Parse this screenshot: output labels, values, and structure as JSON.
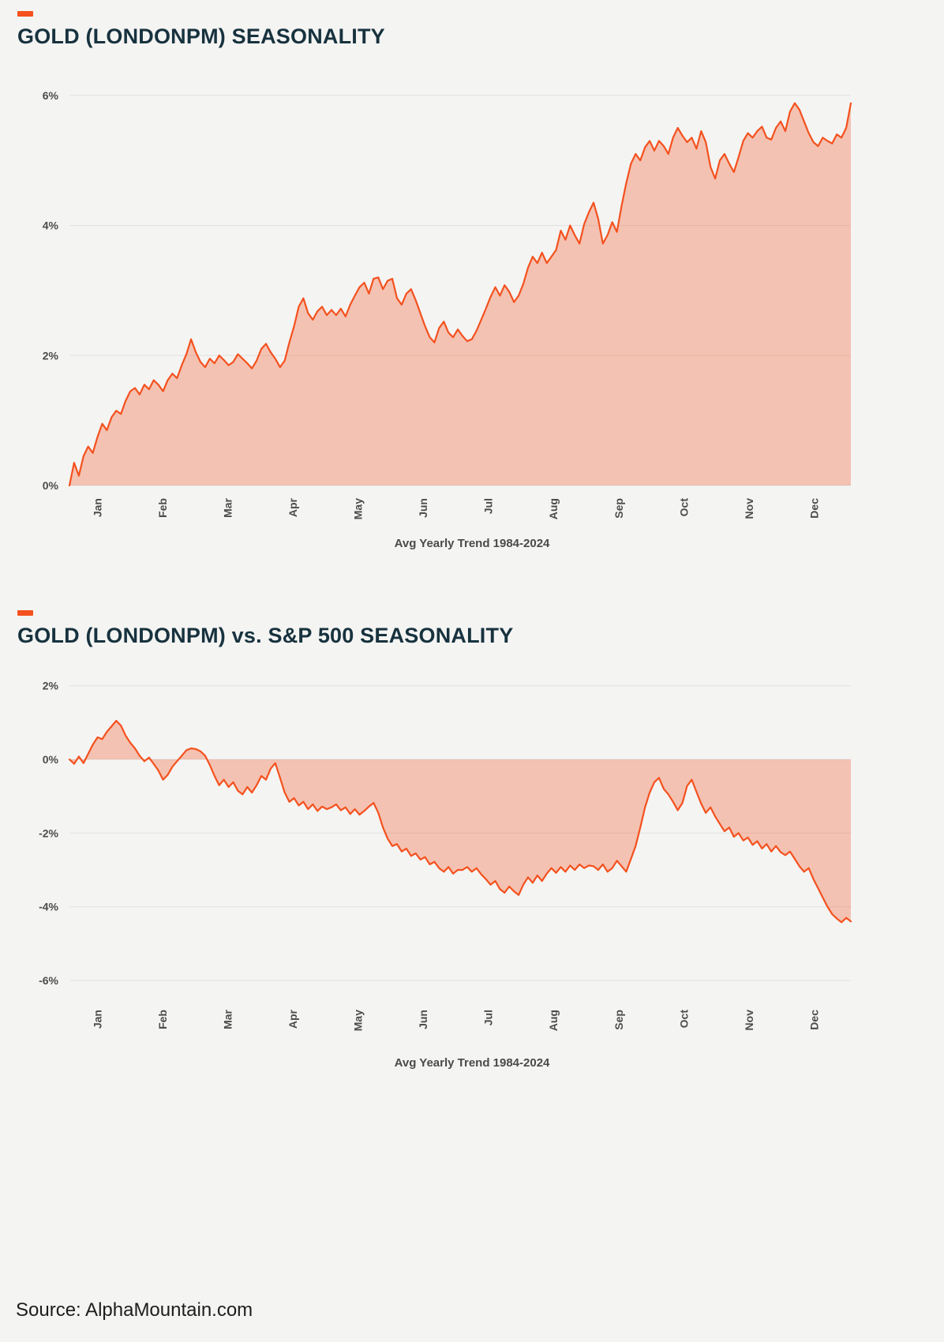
{
  "colors": {
    "accent": "#f4511e",
    "line": "#f4511e",
    "fill": "rgba(244,81,30,0.30)",
    "grid": "#e1e1e0",
    "title": "#17323e",
    "tick_text": "#4c4c4c"
  },
  "footer": {
    "source": "Source: AlphaMountain.com"
  },
  "chart_data": [
    {
      "type": "area",
      "title": "GOLD (LONDONPM) SEASONALITY",
      "xlabel": "Avg Yearly Trend 1984-2024",
      "ylabel": "",
      "legend": "none",
      "grid": "horizontal",
      "categories": [
        "Jan",
        "Feb",
        "Mar",
        "Apr",
        "May",
        "Jun",
        "Jul",
        "Aug",
        "Sep",
        "Oct",
        "Nov",
        "Dec"
      ],
      "yticks": [
        0,
        2,
        4,
        6
      ],
      "ylim": [
        0,
        6.35
      ],
      "baseline": 0,
      "values": [
        0,
        0.35,
        0.15,
        0.45,
        0.6,
        0.5,
        0.75,
        0.95,
        0.85,
        1.05,
        1.15,
        1.1,
        1.3,
        1.45,
        1.5,
        1.4,
        1.55,
        1.48,
        1.62,
        1.55,
        1.45,
        1.62,
        1.72,
        1.65,
        1.85,
        2.02,
        2.25,
        2.05,
        1.9,
        1.82,
        1.95,
        1.88,
        2.0,
        1.93,
        1.85,
        1.9,
        2.02,
        1.95,
        1.88,
        1.8,
        1.92,
        2.1,
        2.18,
        2.05,
        1.95,
        1.82,
        1.92,
        2.2,
        2.45,
        2.75,
        2.88,
        2.65,
        2.55,
        2.68,
        2.75,
        2.62,
        2.7,
        2.62,
        2.72,
        2.6,
        2.78,
        2.92,
        3.05,
        3.12,
        2.95,
        3.18,
        3.2,
        3.02,
        3.15,
        3.18,
        2.88,
        2.78,
        2.95,
        3.02,
        2.85,
        2.65,
        2.45,
        2.28,
        2.2,
        2.42,
        2.52,
        2.35,
        2.28,
        2.4,
        2.3,
        2.22,
        2.25,
        2.38,
        2.55,
        2.72,
        2.9,
        3.05,
        2.92,
        3.08,
        2.98,
        2.82,
        2.92,
        3.1,
        3.35,
        3.52,
        3.42,
        3.58,
        3.42,
        3.52,
        3.62,
        3.92,
        3.78,
        4.0,
        3.85,
        3.72,
        4.02,
        4.2,
        4.35,
        4.1,
        3.72,
        3.85,
        4.05,
        3.9,
        4.3,
        4.65,
        4.95,
        5.1,
        5.0,
        5.2,
        5.3,
        5.15,
        5.3,
        5.22,
        5.1,
        5.35,
        5.5,
        5.38,
        5.28,
        5.35,
        5.18,
        5.45,
        5.28,
        4.9,
        4.72,
        5.0,
        5.1,
        4.95,
        4.82,
        5.05,
        5.3,
        5.42,
        5.35,
        5.45,
        5.52,
        5.35,
        5.32,
        5.5,
        5.6,
        5.45,
        5.75,
        5.88,
        5.78,
        5.6,
        5.42,
        5.28,
        5.22,
        5.35,
        5.3,
        5.26,
        5.4,
        5.35,
        5.5,
        5.88
      ]
    },
    {
      "type": "area",
      "title": "GOLD (LONDONPM) vs. S&P 500 SEASONALITY",
      "xlabel": "Avg Yearly Trend 1984-2024",
      "ylabel": "",
      "legend": "none",
      "grid": "horizontal",
      "categories": [
        "Jan",
        "Feb",
        "Mar",
        "Apr",
        "May",
        "Jun",
        "Jul",
        "Aug",
        "Sep",
        "Oct",
        "Nov",
        "Dec"
      ],
      "yticks": [
        2,
        0,
        -2,
        -4,
        -6
      ],
      "ylim": [
        -6.45,
        2.4
      ],
      "baseline": 0,
      "values": [
        0,
        -0.12,
        0.08,
        -0.1,
        0.15,
        0.4,
        0.6,
        0.55,
        0.75,
        0.9,
        1.05,
        0.92,
        0.65,
        0.45,
        0.3,
        0.1,
        -0.05,
        0.05,
        -0.12,
        -0.3,
        -0.55,
        -0.42,
        -0.2,
        -0.05,
        0.1,
        0.25,
        0.3,
        0.28,
        0.22,
        0.1,
        -0.15,
        -0.45,
        -0.7,
        -0.55,
        -0.75,
        -0.62,
        -0.85,
        -0.95,
        -0.75,
        -0.9,
        -0.7,
        -0.45,
        -0.55,
        -0.25,
        -0.1,
        -0.5,
        -0.9,
        -1.15,
        -1.05,
        -1.25,
        -1.15,
        -1.35,
        -1.22,
        -1.4,
        -1.28,
        -1.35,
        -1.3,
        -1.22,
        -1.38,
        -1.3,
        -1.48,
        -1.35,
        -1.5,
        -1.4,
        -1.28,
        -1.18,
        -1.45,
        -1.85,
        -2.15,
        -2.35,
        -2.3,
        -2.5,
        -2.42,
        -2.62,
        -2.55,
        -2.72,
        -2.65,
        -2.85,
        -2.78,
        -2.95,
        -3.05,
        -2.92,
        -3.1,
        -3.0,
        -3.0,
        -2.92,
        -3.05,
        -2.95,
        -3.12,
        -3.25,
        -3.4,
        -3.3,
        -3.52,
        -3.62,
        -3.45,
        -3.58,
        -3.68,
        -3.4,
        -3.2,
        -3.35,
        -3.15,
        -3.3,
        -3.1,
        -2.95,
        -3.08,
        -2.92,
        -3.05,
        -2.88,
        -3.0,
        -2.85,
        -2.95,
        -2.88,
        -2.9,
        -3.0,
        -2.85,
        -3.05,
        -2.95,
        -2.75,
        -2.9,
        -3.05,
        -2.7,
        -2.35,
        -1.85,
        -1.3,
        -0.9,
        -0.62,
        -0.5,
        -0.8,
        -0.95,
        -1.15,
        -1.38,
        -1.18,
        -0.72,
        -0.55,
        -0.88,
        -1.2,
        -1.45,
        -1.3,
        -1.55,
        -1.75,
        -1.95,
        -1.85,
        -2.1,
        -2.0,
        -2.2,
        -2.12,
        -2.32,
        -2.22,
        -2.42,
        -2.3,
        -2.5,
        -2.35,
        -2.52,
        -2.6,
        -2.5,
        -2.7,
        -2.9,
        -3.05,
        -2.95,
        -3.25,
        -3.5,
        -3.75,
        -4.0,
        -4.2,
        -4.32,
        -4.42,
        -4.3,
        -4.4
      ]
    }
  ]
}
